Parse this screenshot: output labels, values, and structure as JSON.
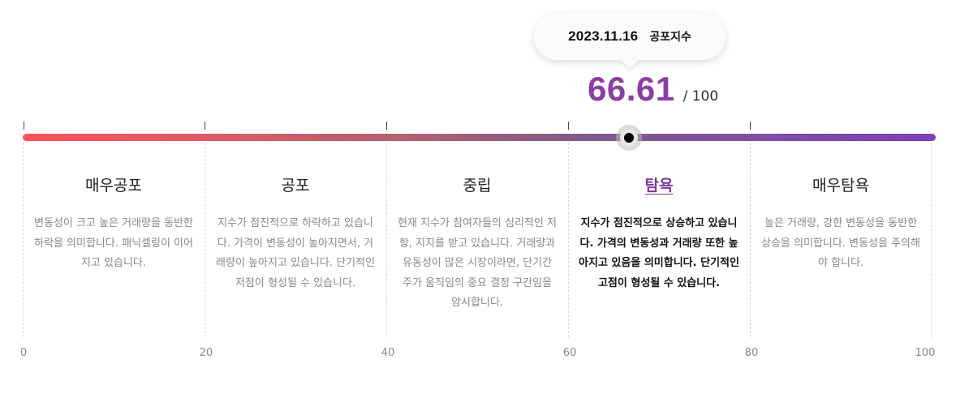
{
  "tooltip": {
    "date": "2023.11.16",
    "label": "공포지수"
  },
  "score": {
    "value": "66.61",
    "max": "/ 100",
    "level": 66.61
  },
  "sections": [
    {
      "title": "매우공포",
      "desc": "변동성이 크고 높은 거래량을 동반한 하락을 의미합니다. 패닉셀링이 이어지고 있습니다."
    },
    {
      "title": "공포",
      "desc": "지수가 점진적으로 하락하고 있습니다. 가격이 변동성이 높아지면서, 거래량이 높아지고 있습니다. 단기적인 저점이 형성될 수 있습니다."
    },
    {
      "title": "중립",
      "desc": "현재 지수가 참여자들의 심리적인 저항, 지지를 받고 있습니다. 거래량과 유동성이 많은 시장이라면, 단기간 주가 움직임의 중요 결정 구간임을 암시합니다."
    },
    {
      "title": "탐욕",
      "desc": "지수가 점진적으로 상승하고 있습니다. 가격의 변동성과 거래량 또한 높아지고 있음을 의미합니다. 단기적인 고점이 형성될 수 있습니다.",
      "active": true
    },
    {
      "title": "매우탐욕",
      "desc": "높은 거래량, 강한 변동성을 동반한 상승을 의미합니다. 변동성을 주의해야 합니다."
    }
  ],
  "scale": [
    "0",
    "20",
    "40",
    "60",
    "80",
    "100"
  ],
  "colors": {
    "accent": "#8a3fa0",
    "gradient_start": "#ff525a",
    "gradient_end": "#7f3fbc"
  }
}
